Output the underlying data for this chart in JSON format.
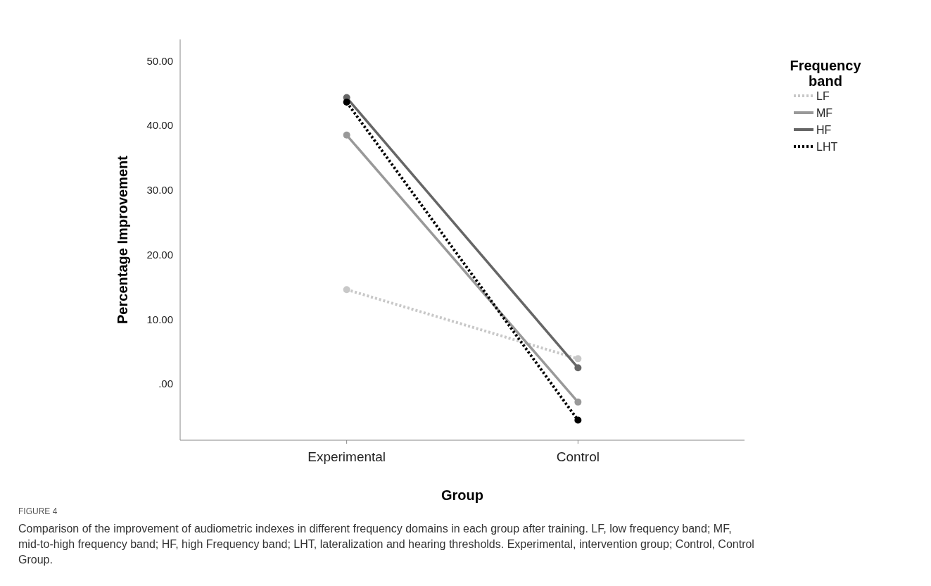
{
  "chart_data": {
    "type": "line",
    "xlabel": "Group",
    "ylabel": "Percentage Improvement",
    "legend_title": "Frequency band",
    "categories": [
      "Experimental",
      "Control"
    ],
    "series": [
      {
        "name": "LF",
        "color": "#c8c8c8",
        "line_style": "dotted",
        "values": [
          14.6,
          3.9
        ]
      },
      {
        "name": "MF",
        "color": "#999999",
        "line_style": "solid",
        "values": [
          38.5,
          -2.8
        ]
      },
      {
        "name": "HF",
        "color": "#666666",
        "line_style": "solid",
        "values": [
          44.3,
          2.5
        ]
      },
      {
        "name": "LHT",
        "color": "#000000",
        "line_style": "dotted",
        "values": [
          43.6,
          -5.6
        ]
      }
    ],
    "ylim": [
      -8.7,
      53.3
    ],
    "yticks": [
      {
        "value": 0,
        "label": ".00"
      },
      {
        "value": 10,
        "label": "10.00"
      },
      {
        "value": 20,
        "label": "20.00"
      },
      {
        "value": 30,
        "label": "30.00"
      },
      {
        "value": 40,
        "label": "40.00"
      },
      {
        "value": 50,
        "label": "50.00"
      }
    ],
    "grid": false,
    "legend": "top right",
    "marker": "circle",
    "annotations": [
      "FIGURE 4",
      "Comparison of the improvement of audiometric indexes in different frequency domains in each group after training. LF, low frequency band; MF, mid-to-high frequency band; HF, high Frequency band; LHT, lateralization and hearing thresholds. Experimental, intervention group; Control, Control Group."
    ]
  }
}
